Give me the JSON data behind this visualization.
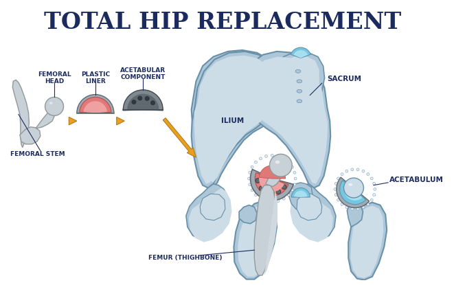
{
  "title": "TOTAL HIP REPLACEMENT",
  "title_color": "#1c2b5e",
  "title_fontsize": 24,
  "bg_color": "#ffffff",
  "labels": {
    "femoral_head": "FEMORAL\nHEAD",
    "plastic_liner": "PLASTIC\nLINER",
    "acetabular_component": "ACETABULAR\nCOMPONENT",
    "femoral_stem": "FEMORAL STEM",
    "femur": "FEMUR (THIGHBONE)",
    "ilium": "ILIUM",
    "sacrum": "SACRUM",
    "acetabulum": "ACETABULUM"
  },
  "label_color": "#1c2b5e",
  "label_fontsize": 6.5,
  "bone_fill": "#adc6d8",
  "bone_light": "#ccdde8",
  "bone_dark": "#7aa0b8",
  "bone_edge": "#6890a8",
  "cartilage": "#72c8e0",
  "cartilage_light": "#a8dff0",
  "metal_fill": "#a0abb5",
  "metal_dark": "#606870",
  "metal_light": "#d0d8e0",
  "liner_fill": "#e07878",
  "liner_light": "#f0a0a0",
  "arrow_fill": "#e8a020",
  "arrow_edge": "#b87818",
  "stem_fill": "#c8d0d8",
  "stem_dark": "#909898",
  "white": "#ffffff",
  "dotted_white": "#e8f0f5"
}
